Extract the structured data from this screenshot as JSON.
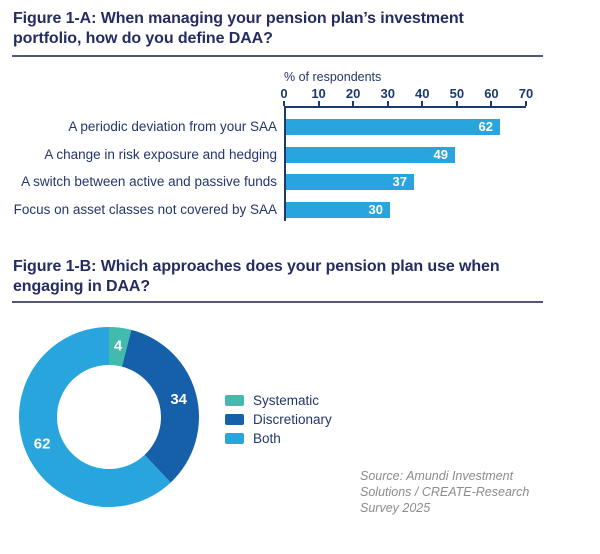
{
  "colors": {
    "navy_title": "#252C62",
    "navy_text": "#24366B",
    "axis_navy": "#1C3A6E",
    "bar_blue": "#29A5DE",
    "dark_blue": "#1560A8",
    "teal": "#41BBAD",
    "divider": "#51567B",
    "source_gray": "#8C8C8C"
  },
  "source": {
    "lines": [
      "Source: Amundi Investment",
      "Solutions / CREATE-Research",
      "Survey 2025"
    ]
  },
  "chart_data": [
    {
      "type": "bar",
      "orientation": "horizontal",
      "title": "Figure 1-A: When managing your pension plan’s investment portfolio, how do you define DAA?",
      "xlabel": "% of respondents",
      "xlim": [
        0,
        70
      ],
      "xticks": [
        0,
        10,
        20,
        30,
        40,
        50,
        60,
        70
      ],
      "categories": [
        "A periodic deviation from your SAA",
        "A change in risk exposure and hedging",
        "A switch between active and passive funds",
        "Focus on asset classes not covered by SAA"
      ],
      "values": [
        62,
        49,
        37,
        30
      ],
      "bar_color": "#29A5DE",
      "value_label_color": "#FFFFFF",
      "grid": false,
      "value_labels_inside_bars": true
    },
    {
      "type": "pie",
      "subtype": "donut",
      "title": "Figure 1-B: Which approaches does your pension plan use when engaging in DAA?",
      "labels": [
        "Systematic",
        "Discretionary",
        "Both"
      ],
      "values": [
        4,
        34,
        62
      ],
      "colors": [
        "#41BBAD",
        "#1560A8",
        "#29A5DE"
      ],
      "start_angle": "top",
      "direction": "clockwise",
      "legend_position": "right"
    }
  ]
}
